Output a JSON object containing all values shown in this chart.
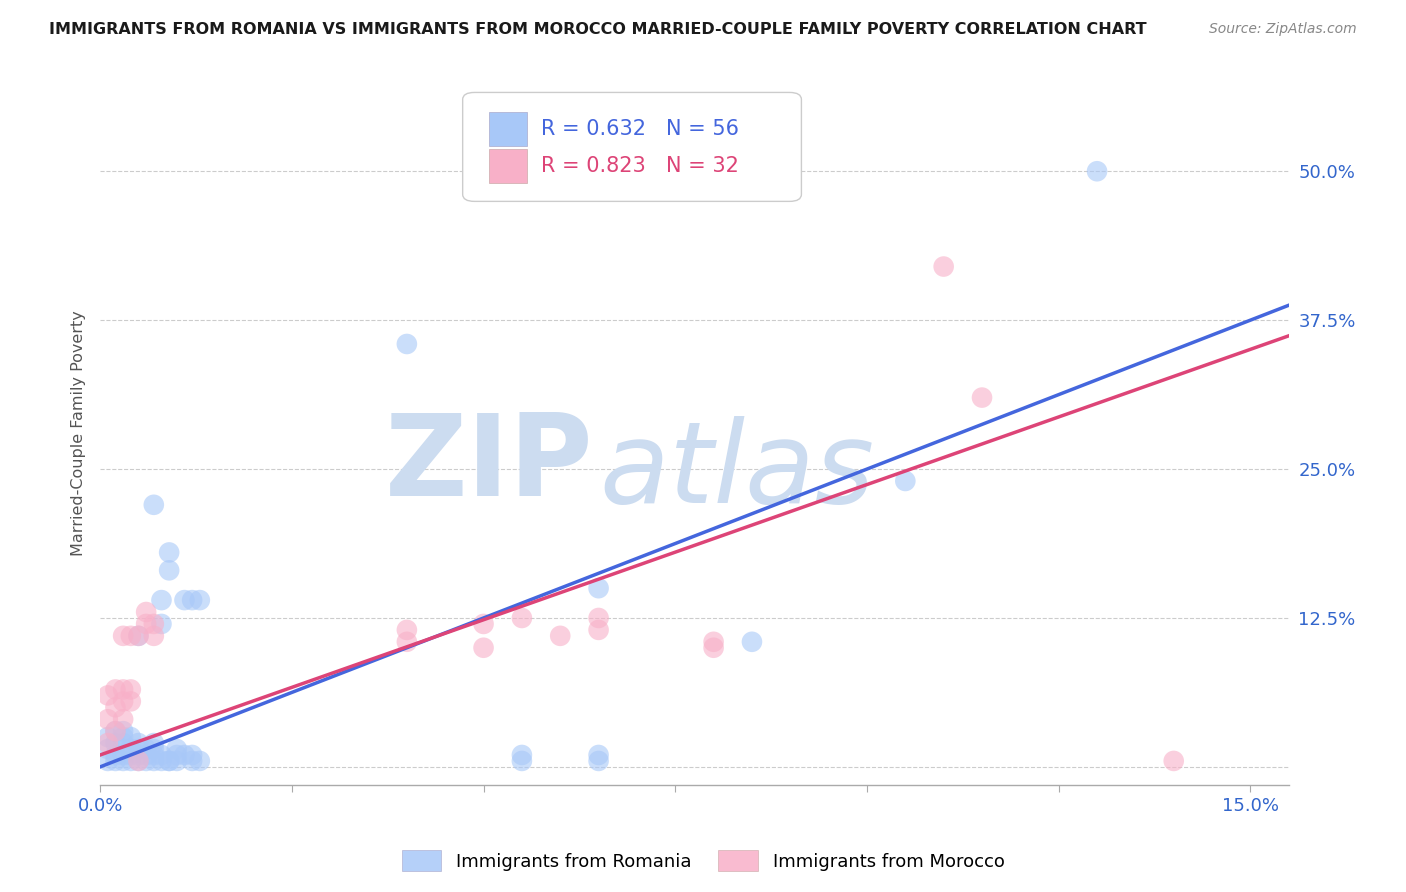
{
  "title": "IMMIGRANTS FROM ROMANIA VS IMMIGRANTS FROM MOROCCO MARRIED-COUPLE FAMILY POVERTY CORRELATION CHART",
  "source": "Source: ZipAtlas.com",
  "ylabel_label": "Married-Couple Family Poverty",
  "xlim": [
    0.0,
    0.155
  ],
  "ylim": [
    -0.015,
    0.575
  ],
  "romania_R": 0.632,
  "romania_N": 56,
  "morocco_R": 0.823,
  "morocco_N": 32,
  "romania_color": "#a8c8f8",
  "morocco_color": "#f8b0c8",
  "romania_line_color": "#4466dd",
  "morocco_line_color": "#dd4477",
  "watermark_zip": "ZIP",
  "watermark_atlas": "atlas",
  "watermark_color": "#ccdcf0",
  "x_tick_vals": [
    0.0,
    0.025,
    0.05,
    0.075,
    0.1,
    0.125,
    0.15
  ],
  "y_tick_vals": [
    0.0,
    0.125,
    0.25,
    0.375,
    0.5
  ],
  "romania_points_x": [
    0.001,
    0.001,
    0.001,
    0.002,
    0.002,
    0.002,
    0.002,
    0.003,
    0.003,
    0.003,
    0.003,
    0.003,
    0.004,
    0.004,
    0.004,
    0.004,
    0.005,
    0.005,
    0.005,
    0.005,
    0.005,
    0.006,
    0.006,
    0.006,
    0.007,
    0.007,
    0.007,
    0.007,
    0.007,
    0.008,
    0.008,
    0.008,
    0.008,
    0.009,
    0.009,
    0.009,
    0.009,
    0.01,
    0.01,
    0.01,
    0.011,
    0.011,
    0.012,
    0.012,
    0.012,
    0.013,
    0.013,
    0.04,
    0.055,
    0.055,
    0.065,
    0.065,
    0.065,
    0.085,
    0.105,
    0.13
  ],
  "romania_points_y": [
    0.005,
    0.015,
    0.025,
    0.005,
    0.01,
    0.02,
    0.03,
    0.005,
    0.01,
    0.02,
    0.025,
    0.03,
    0.005,
    0.01,
    0.015,
    0.025,
    0.005,
    0.01,
    0.015,
    0.02,
    0.11,
    0.005,
    0.01,
    0.015,
    0.005,
    0.01,
    0.015,
    0.02,
    0.22,
    0.005,
    0.01,
    0.12,
    0.14,
    0.005,
    0.005,
    0.165,
    0.18,
    0.005,
    0.01,
    0.015,
    0.01,
    0.14,
    0.005,
    0.01,
    0.14,
    0.005,
    0.14,
    0.355,
    0.005,
    0.01,
    0.005,
    0.01,
    0.15,
    0.105,
    0.24,
    0.5
  ],
  "morocco_points_x": [
    0.001,
    0.001,
    0.001,
    0.002,
    0.002,
    0.002,
    0.003,
    0.003,
    0.003,
    0.003,
    0.004,
    0.004,
    0.004,
    0.005,
    0.005,
    0.006,
    0.006,
    0.007,
    0.007,
    0.04,
    0.04,
    0.05,
    0.05,
    0.055,
    0.06,
    0.065,
    0.065,
    0.08,
    0.08,
    0.11,
    0.115,
    0.14
  ],
  "morocco_points_y": [
    0.02,
    0.04,
    0.06,
    0.03,
    0.05,
    0.065,
    0.04,
    0.055,
    0.065,
    0.11,
    0.055,
    0.065,
    0.11,
    0.005,
    0.11,
    0.12,
    0.13,
    0.11,
    0.12,
    0.105,
    0.115,
    0.1,
    0.12,
    0.125,
    0.11,
    0.115,
    0.125,
    0.105,
    0.1,
    0.42,
    0.31,
    0.005
  ]
}
